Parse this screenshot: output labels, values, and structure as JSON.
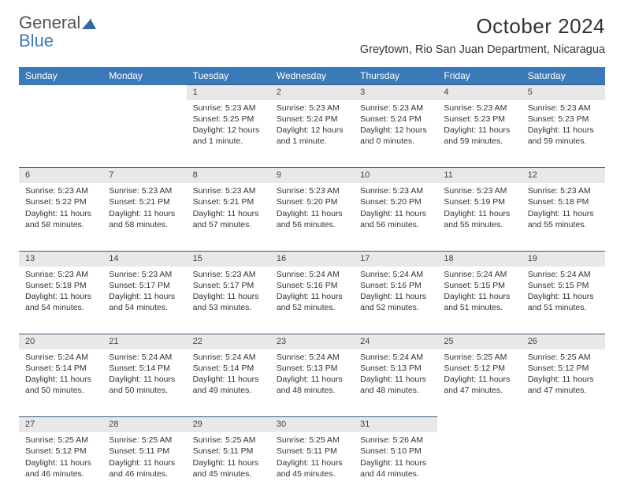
{
  "logo": {
    "text_gray": "General",
    "text_blue": "Blue"
  },
  "title": "October 2024",
  "location": "Greytown, Rio San Juan Department, Nicaragua",
  "colors": {
    "header_bg": "#3a7ab8",
    "header_text": "#ffffff",
    "daynum_bg": "#e8e8e8",
    "border_top": "#3a5a7a",
    "body_text": "#333333"
  },
  "day_headers": [
    "Sunday",
    "Monday",
    "Tuesday",
    "Wednesday",
    "Thursday",
    "Friday",
    "Saturday"
  ],
  "weeks": [
    [
      null,
      null,
      {
        "n": "1",
        "sr": "5:23 AM",
        "ss": "5:25 PM",
        "dl": "12 hours and 1 minute."
      },
      {
        "n": "2",
        "sr": "5:23 AM",
        "ss": "5:24 PM",
        "dl": "12 hours and 1 minute."
      },
      {
        "n": "3",
        "sr": "5:23 AM",
        "ss": "5:24 PM",
        "dl": "12 hours and 0 minutes."
      },
      {
        "n": "4",
        "sr": "5:23 AM",
        "ss": "5:23 PM",
        "dl": "11 hours and 59 minutes."
      },
      {
        "n": "5",
        "sr": "5:23 AM",
        "ss": "5:23 PM",
        "dl": "11 hours and 59 minutes."
      }
    ],
    [
      {
        "n": "6",
        "sr": "5:23 AM",
        "ss": "5:22 PM",
        "dl": "11 hours and 58 minutes."
      },
      {
        "n": "7",
        "sr": "5:23 AM",
        "ss": "5:21 PM",
        "dl": "11 hours and 58 minutes."
      },
      {
        "n": "8",
        "sr": "5:23 AM",
        "ss": "5:21 PM",
        "dl": "11 hours and 57 minutes."
      },
      {
        "n": "9",
        "sr": "5:23 AM",
        "ss": "5:20 PM",
        "dl": "11 hours and 56 minutes."
      },
      {
        "n": "10",
        "sr": "5:23 AM",
        "ss": "5:20 PM",
        "dl": "11 hours and 56 minutes."
      },
      {
        "n": "11",
        "sr": "5:23 AM",
        "ss": "5:19 PM",
        "dl": "11 hours and 55 minutes."
      },
      {
        "n": "12",
        "sr": "5:23 AM",
        "ss": "5:18 PM",
        "dl": "11 hours and 55 minutes."
      }
    ],
    [
      {
        "n": "13",
        "sr": "5:23 AM",
        "ss": "5:18 PM",
        "dl": "11 hours and 54 minutes."
      },
      {
        "n": "14",
        "sr": "5:23 AM",
        "ss": "5:17 PM",
        "dl": "11 hours and 54 minutes."
      },
      {
        "n": "15",
        "sr": "5:23 AM",
        "ss": "5:17 PM",
        "dl": "11 hours and 53 minutes."
      },
      {
        "n": "16",
        "sr": "5:24 AM",
        "ss": "5:16 PM",
        "dl": "11 hours and 52 minutes."
      },
      {
        "n": "17",
        "sr": "5:24 AM",
        "ss": "5:16 PM",
        "dl": "11 hours and 52 minutes."
      },
      {
        "n": "18",
        "sr": "5:24 AM",
        "ss": "5:15 PM",
        "dl": "11 hours and 51 minutes."
      },
      {
        "n": "19",
        "sr": "5:24 AM",
        "ss": "5:15 PM",
        "dl": "11 hours and 51 minutes."
      }
    ],
    [
      {
        "n": "20",
        "sr": "5:24 AM",
        "ss": "5:14 PM",
        "dl": "11 hours and 50 minutes."
      },
      {
        "n": "21",
        "sr": "5:24 AM",
        "ss": "5:14 PM",
        "dl": "11 hours and 50 minutes."
      },
      {
        "n": "22",
        "sr": "5:24 AM",
        "ss": "5:14 PM",
        "dl": "11 hours and 49 minutes."
      },
      {
        "n": "23",
        "sr": "5:24 AM",
        "ss": "5:13 PM",
        "dl": "11 hours and 48 minutes."
      },
      {
        "n": "24",
        "sr": "5:24 AM",
        "ss": "5:13 PM",
        "dl": "11 hours and 48 minutes."
      },
      {
        "n": "25",
        "sr": "5:25 AM",
        "ss": "5:12 PM",
        "dl": "11 hours and 47 minutes."
      },
      {
        "n": "26",
        "sr": "5:25 AM",
        "ss": "5:12 PM",
        "dl": "11 hours and 47 minutes."
      }
    ],
    [
      {
        "n": "27",
        "sr": "5:25 AM",
        "ss": "5:12 PM",
        "dl": "11 hours and 46 minutes."
      },
      {
        "n": "28",
        "sr": "5:25 AM",
        "ss": "5:11 PM",
        "dl": "11 hours and 46 minutes."
      },
      {
        "n": "29",
        "sr": "5:25 AM",
        "ss": "5:11 PM",
        "dl": "11 hours and 45 minutes."
      },
      {
        "n": "30",
        "sr": "5:25 AM",
        "ss": "5:11 PM",
        "dl": "11 hours and 45 minutes."
      },
      {
        "n": "31",
        "sr": "5:26 AM",
        "ss": "5:10 PM",
        "dl": "11 hours and 44 minutes."
      },
      null,
      null
    ]
  ],
  "labels": {
    "sunrise": "Sunrise:",
    "sunset": "Sunset:",
    "daylight": "Daylight:"
  }
}
